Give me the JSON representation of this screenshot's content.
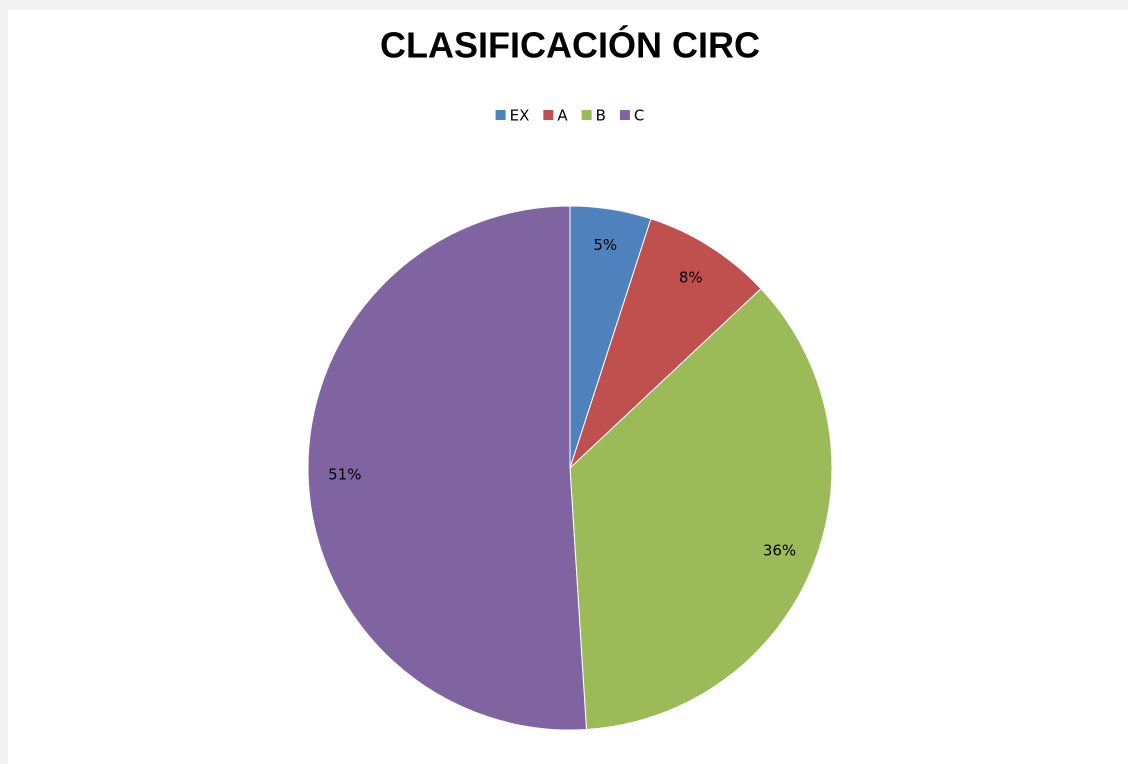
{
  "chart_data": {
    "type": "pie",
    "title": "CLASIFICACIÓN CIRC",
    "categories": [
      "EX",
      "A",
      "B",
      "C"
    ],
    "values": [
      5,
      8,
      36,
      51
    ],
    "value_labels": [
      "5%",
      "8%",
      "36%",
      "51%"
    ],
    "colors": [
      "#4f81bd",
      "#c0504d",
      "#9bbb59",
      "#8064a2"
    ],
    "legend": "top"
  }
}
